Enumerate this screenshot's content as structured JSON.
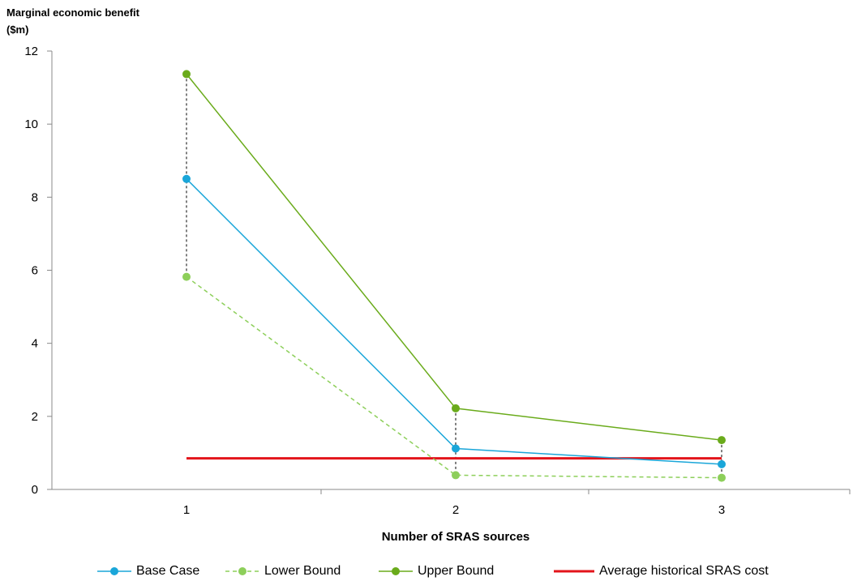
{
  "chart_data": {
    "type": "line",
    "ylabel_lines": [
      "Marginal economic benefit",
      "($m)"
    ],
    "xlabel": "Number of SRAS sources",
    "categories": [
      "1",
      "2",
      "3"
    ],
    "x": [
      1,
      2,
      3
    ],
    "ylim": [
      0,
      12
    ],
    "yticks": [
      0,
      2,
      4,
      6,
      8,
      10,
      12
    ],
    "grid": false,
    "legend_position": "bottom",
    "series": [
      {
        "name": "Base Case",
        "values": [
          8.5,
          1.12,
          0.69
        ],
        "color": "#1aa6d9",
        "dashed": false
      },
      {
        "name": "Lower Bound",
        "values": [
          5.82,
          0.39,
          0.32
        ],
        "color": "#8dcf5a",
        "dashed": true
      },
      {
        "name": "Upper Bound",
        "values": [
          11.37,
          2.22,
          1.35
        ],
        "color": "#6aab1b",
        "dashed": false
      }
    ],
    "reference_line": {
      "name": "Average historical SRAS cost",
      "value": 0.85,
      "color": "#e3141b"
    }
  }
}
